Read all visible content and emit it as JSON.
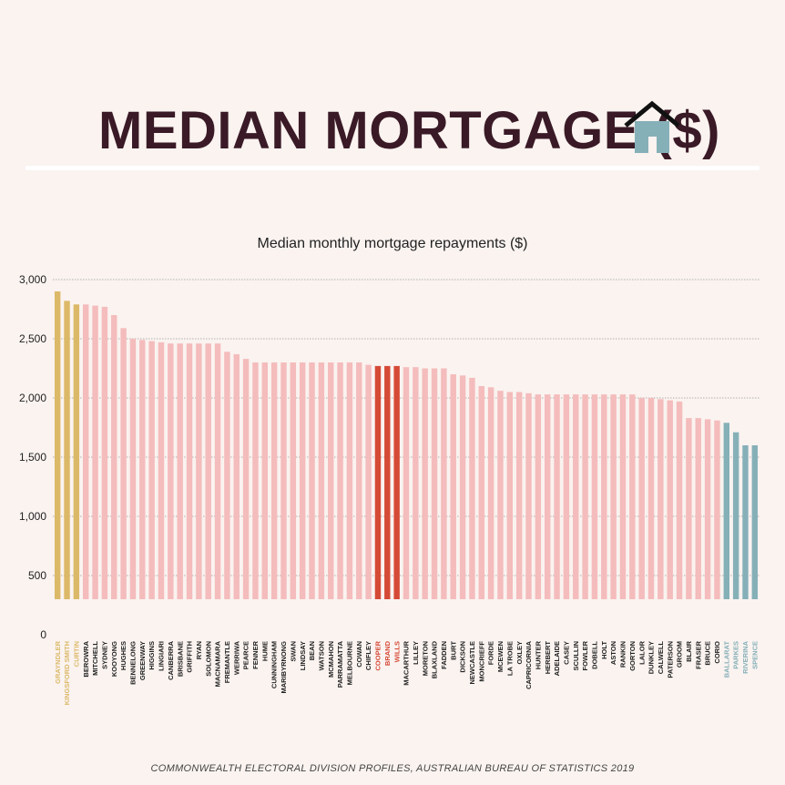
{
  "header": {
    "title": "MEDIAN MORTGAGE ($)",
    "title_color": "#3a1a26",
    "icon": "house-icon",
    "icon_color": "#86b0b8",
    "roof_color": "#111111"
  },
  "chart_data": {
    "type": "bar",
    "title": "Median monthly mortgage repayments ($)",
    "xlabel": "",
    "ylabel": "",
    "ylim": [
      0,
      3000
    ],
    "yticks": [
      0,
      500,
      1000,
      1500,
      2000,
      2500,
      3000
    ],
    "ytick_labels": [
      "0",
      "500",
      "1,000",
      "1,500",
      "2,000",
      "2,500",
      "3,000"
    ],
    "grid": true,
    "highlight_colors": {
      "gold": "#dcb968",
      "red": "#d54a36",
      "teal": "#86b0b8",
      "default": "#f4bcbc"
    },
    "categories": [
      "GRAYNDLER",
      "KINGSFORD SMITH",
      "CURTIN",
      "BEROWRA",
      "MITCHELL",
      "SYDNEY",
      "KOOYONG",
      "HUGHES",
      "BENNELONG",
      "GREENWAY",
      "HIGGINS",
      "LINGIARI",
      "CANBERRA",
      "BRISBANE",
      "GRIFFITH",
      "RYAN",
      "SOLOMON",
      "MACNAMARA",
      "FREMANTLE",
      "WERRIWA",
      "PEARCE",
      "FENNER",
      "HUME",
      "CUNNINGHAM",
      "MARIBYRNONG",
      "SWAN",
      "LINDSAY",
      "BEAN",
      "WATSON",
      "MCMAHON",
      "PARRAMATTA",
      "MELBOURNE",
      "COWAN",
      "CHIFLEY",
      "COOPER",
      "BRAND",
      "WILLS",
      "MACARTHUR",
      "LILLEY",
      "MORETON",
      "BLAXLAND",
      "FADDEN",
      "BURT",
      "DICKSON",
      "NEWCASTLE",
      "MONCRIEFF",
      "FORDE",
      "MCEWEN",
      "LA TROBE",
      "OXLEY",
      "CAPRICORNIA",
      "HUNTER",
      "HERBERT",
      "ADELAIDE",
      "CASEY",
      "SCULLIN",
      "FOWLER",
      "DOBELL",
      "HOLT",
      "ASTON",
      "RANKIN",
      "GORTON",
      "LALOR",
      "DUNKLEY",
      "CALWELL",
      "PATERSON",
      "GROOM",
      "BLAIR",
      "FRASER",
      "BRUCE",
      "CORIO",
      "BALLARAT",
      "PARKES",
      "RIVERINA",
      "SPENCE"
    ],
    "values": [
      2900,
      2820,
      2790,
      2790,
      2780,
      2770,
      2700,
      2590,
      2500,
      2490,
      2480,
      2470,
      2460,
      2460,
      2460,
      2460,
      2460,
      2460,
      2390,
      2370,
      2330,
      2300,
      2300,
      2300,
      2300,
      2300,
      2300,
      2300,
      2300,
      2300,
      2300,
      2300,
      2300,
      2280,
      2270,
      2270,
      2270,
      2260,
      2260,
      2250,
      2250,
      2250,
      2200,
      2190,
      2170,
      2100,
      2090,
      2060,
      2050,
      2050,
      2040,
      2030,
      2030,
      2030,
      2030,
      2030,
      2030,
      2030,
      2030,
      2030,
      2030,
      2030,
      2000,
      2000,
      1990,
      1980,
      1970,
      1830,
      1830,
      1820,
      1810,
      1790,
      1710,
      1600,
      1600
    ],
    "bar_groups": [
      "gold",
      "gold",
      "gold",
      "default",
      "default",
      "default",
      "default",
      "default",
      "default",
      "default",
      "default",
      "default",
      "default",
      "default",
      "default",
      "default",
      "default",
      "default",
      "default",
      "default",
      "default",
      "default",
      "default",
      "default",
      "default",
      "default",
      "default",
      "default",
      "default",
      "default",
      "default",
      "default",
      "default",
      "default",
      "red",
      "red",
      "red",
      "default",
      "default",
      "default",
      "default",
      "default",
      "default",
      "default",
      "default",
      "default",
      "default",
      "default",
      "default",
      "default",
      "default",
      "default",
      "default",
      "default",
      "default",
      "default",
      "default",
      "default",
      "default",
      "default",
      "default",
      "default",
      "default",
      "default",
      "default",
      "default",
      "default",
      "default",
      "default",
      "default",
      "default",
      "teal",
      "teal",
      "teal",
      "teal"
    ]
  },
  "footer": {
    "source": "COMMONWEALTH ELECTORAL DIVISION PROFILES, AUSTRALIAN BUREAU OF STATISTICS 2019"
  }
}
